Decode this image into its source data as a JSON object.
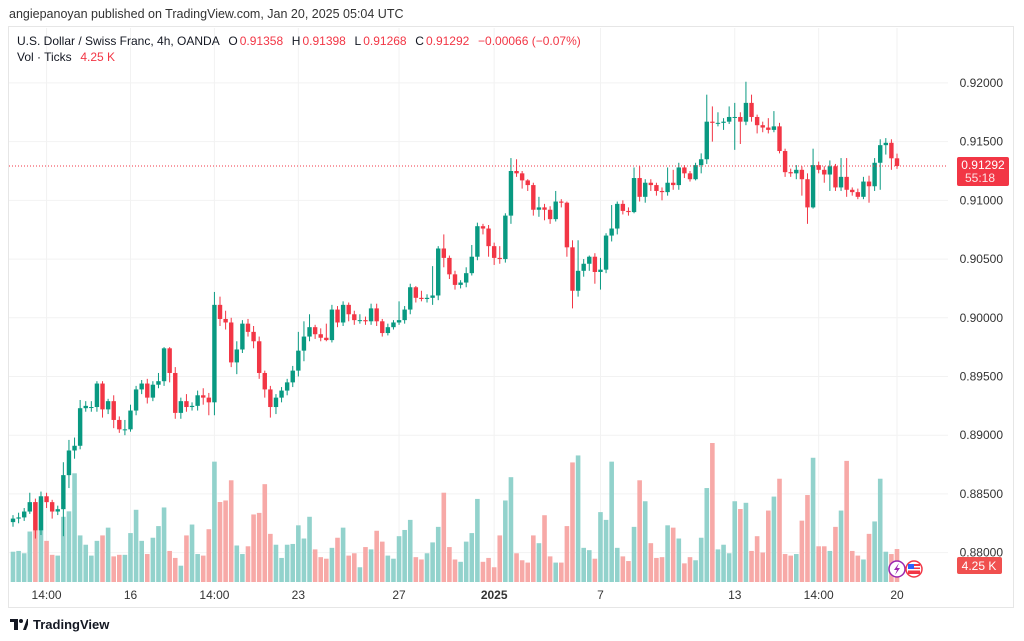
{
  "published": "angiepanoyan published on TradingView.com, Jan 20, 2025 05:04 UTC",
  "legend": {
    "symbol": "U.S. Dollar / Swiss Franc, 4h, OANDA",
    "o_label": "O",
    "o": "0.91358",
    "h_label": "H",
    "h": "0.91398",
    "l_label": "L",
    "l": "0.91268",
    "c_label": "C",
    "c": "0.91292",
    "change": "−0.00066 (−0.07%)",
    "vol_label": "Vol · Ticks",
    "vol": "4.25 K"
  },
  "price_badge": {
    "price": "0.91292",
    "countdown": "55:18"
  },
  "volume_badge": "4.25 K",
  "footer_logo": "TradingView",
  "colors": {
    "up": "#089981",
    "down": "#f23645",
    "vol_up": "#92d2cc",
    "vol_down": "#f7a9a7"
  },
  "chart_data": {
    "type": "candlestick",
    "title": "U.S. Dollar / Swiss Franc, 4h, OANDA",
    "ylim": [
      0.8775,
      0.9211
    ],
    "y_ticks": [
      "0.92000",
      "0.91500",
      "0.91000",
      "0.90500",
      "0.90000",
      "0.89500",
      "0.89000",
      "0.88500",
      "0.88000"
    ],
    "x_ticks": [
      {
        "label": "14:00",
        "index": 6
      },
      {
        "label": "16",
        "index": 21
      },
      {
        "label": "14:00",
        "index": 36
      },
      {
        "label": "23",
        "index": 51
      },
      {
        "label": "27",
        "index": 69
      },
      {
        "label": "2025",
        "index": 86
      },
      {
        "label": "7",
        "index": 105
      },
      {
        "label": "13",
        "index": 129
      },
      {
        "label": "14:00",
        "index": 144
      },
      {
        "label": "20",
        "index": 158
      }
    ],
    "last_price": 0.91292,
    "candles_ohlc": [
      [
        0.8826,
        0.8832,
        0.8822,
        0.8829
      ],
      [
        0.8829,
        0.8834,
        0.8825,
        0.883
      ],
      [
        0.883,
        0.8838,
        0.8827,
        0.8835
      ],
      [
        0.8835,
        0.8851,
        0.8833,
        0.8843
      ],
      [
        0.8843,
        0.8846,
        0.8812,
        0.8819
      ],
      [
        0.8819,
        0.8852,
        0.8815,
        0.8848
      ],
      [
        0.8848,
        0.8851,
        0.8838,
        0.8843
      ],
      [
        0.8843,
        0.8845,
        0.8829,
        0.8835
      ],
      [
        0.8835,
        0.884,
        0.8832,
        0.8837
      ],
      [
        0.8837,
        0.8877,
        0.8814,
        0.8866
      ],
      [
        0.8866,
        0.8896,
        0.8855,
        0.8887
      ],
      [
        0.8887,
        0.8898,
        0.888,
        0.8891
      ],
      [
        0.8891,
        0.893,
        0.8888,
        0.8923
      ],
      [
        0.8923,
        0.8929,
        0.892,
        0.8925
      ],
      [
        0.8924,
        0.8929,
        0.892,
        0.8924
      ],
      [
        0.8924,
        0.8946,
        0.892,
        0.8944
      ],
      [
        0.8944,
        0.8946,
        0.8915,
        0.8922
      ],
      [
        0.8922,
        0.8931,
        0.8918,
        0.8929
      ],
      [
        0.8929,
        0.8934,
        0.8906,
        0.8913
      ],
      [
        0.8913,
        0.8916,
        0.8902,
        0.8905
      ],
      [
        0.8905,
        0.8913,
        0.89,
        0.8905
      ],
      [
        0.8905,
        0.8926,
        0.8903,
        0.8921
      ],
      [
        0.8921,
        0.8942,
        0.8917,
        0.8939
      ],
      [
        0.8939,
        0.8947,
        0.8935,
        0.8944
      ],
      [
        0.8944,
        0.8948,
        0.8927,
        0.8932
      ],
      [
        0.8932,
        0.8946,
        0.8929,
        0.8943
      ],
      [
        0.8943,
        0.8953,
        0.894,
        0.8946
      ],
      [
        0.8946,
        0.8975,
        0.8942,
        0.8974
      ],
      [
        0.8974,
        0.8975,
        0.8945,
        0.8953
      ],
      [
        0.8953,
        0.8958,
        0.8914,
        0.8919
      ],
      [
        0.8919,
        0.8932,
        0.8914,
        0.8929
      ],
      [
        0.8929,
        0.8935,
        0.892,
        0.8924
      ],
      [
        0.8924,
        0.8928,
        0.8921,
        0.8925
      ],
      [
        0.8925,
        0.8938,
        0.8921,
        0.8934
      ],
      [
        0.8934,
        0.894,
        0.8926,
        0.8932
      ],
      [
        0.8932,
        0.8936,
        0.8917,
        0.8928
      ],
      [
        0.8928,
        0.9022,
        0.8917,
        0.9011
      ],
      [
        0.9011,
        0.9018,
        0.8993,
        0.8999
      ],
      [
        0.8999,
        0.9006,
        0.899,
        0.8996
      ],
      [
        0.8996,
        0.9,
        0.8958,
        0.8962
      ],
      [
        0.8962,
        0.898,
        0.8952,
        0.8973
      ],
      [
        0.8973,
        0.8998,
        0.897,
        0.8995
      ],
      [
        0.8995,
        0.8999,
        0.8984,
        0.8988
      ],
      [
        0.8988,
        0.8993,
        0.8974,
        0.898
      ],
      [
        0.898,
        0.8984,
        0.8948,
        0.8953
      ],
      [
        0.8953,
        0.8955,
        0.8932,
        0.8939
      ],
      [
        0.8939,
        0.8942,
        0.8915,
        0.8924
      ],
      [
        0.8924,
        0.8935,
        0.8918,
        0.8932
      ],
      [
        0.8932,
        0.8941,
        0.8928,
        0.8938
      ],
      [
        0.8938,
        0.8948,
        0.8934,
        0.8945
      ],
      [
        0.8945,
        0.8959,
        0.8941,
        0.8955
      ],
      [
        0.8955,
        0.8988,
        0.895,
        0.8972
      ],
      [
        0.8972,
        0.8997,
        0.8963,
        0.8984
      ],
      [
        0.8984,
        0.9003,
        0.898,
        0.8992
      ],
      [
        0.8992,
        0.8994,
        0.8982,
        0.8986
      ],
      [
        0.8986,
        0.8991,
        0.898,
        0.8983
      ],
      [
        0.8983,
        0.8995,
        0.898,
        0.8981
      ],
      [
        0.8981,
        0.9011,
        0.8979,
        0.9007
      ],
      [
        0.9007,
        0.901,
        0.8992,
        0.8996
      ],
      [
        0.8996,
        0.9014,
        0.8993,
        0.9011
      ],
      [
        0.9011,
        0.9013,
        0.8997,
        0.9003
      ],
      [
        0.9003,
        0.9006,
        0.8994,
        0.8998
      ],
      [
        0.8998,
        0.9003,
        0.8995,
        0.8998
      ],
      [
        0.8998,
        0.9001,
        0.8994,
        0.8997
      ],
      [
        0.8997,
        0.9012,
        0.8994,
        0.9008
      ],
      [
        0.9008,
        0.9012,
        0.8993,
        0.8997
      ],
      [
        0.8997,
        0.8999,
        0.8984,
        0.8987
      ],
      [
        0.8987,
        0.8995,
        0.8985,
        0.8992
      ],
      [
        0.8992,
        0.8998,
        0.899,
        0.8996
      ],
      [
        0.8996,
        0.9014,
        0.8994,
        0.8998
      ],
      [
        0.8998,
        0.901,
        0.8995,
        0.9007
      ],
      [
        0.9007,
        0.9029,
        0.9003,
        0.9026
      ],
      [
        0.9026,
        0.9027,
        0.9013,
        0.9017
      ],
      [
        0.9017,
        0.9023,
        0.9014,
        0.9016
      ],
      [
        0.9016,
        0.902,
        0.9013,
        0.9017
      ],
      [
        0.9017,
        0.9044,
        0.9011,
        0.9019
      ],
      [
        0.9019,
        0.9061,
        0.9015,
        0.9059
      ],
      [
        0.9059,
        0.9071,
        0.9043,
        0.9051
      ],
      [
        0.9051,
        0.9053,
        0.9033,
        0.9037
      ],
      [
        0.9037,
        0.904,
        0.9024,
        0.9028
      ],
      [
        0.9028,
        0.9032,
        0.9025,
        0.903
      ],
      [
        0.903,
        0.9043,
        0.9026,
        0.9038
      ],
      [
        0.9038,
        0.9062,
        0.9036,
        0.9052
      ],
      [
        0.9052,
        0.9081,
        0.9049,
        0.9078
      ],
      [
        0.9078,
        0.908,
        0.9071,
        0.9076
      ],
      [
        0.9076,
        0.9079,
        0.9052,
        0.9061
      ],
      [
        0.9061,
        0.9064,
        0.9045,
        0.9051
      ],
      [
        0.9051,
        0.9061,
        0.9046,
        0.905
      ],
      [
        0.905,
        0.9089,
        0.9047,
        0.9087
      ],
      [
        0.9087,
        0.9136,
        0.908,
        0.9125
      ],
      [
        0.9125,
        0.9135,
        0.912,
        0.9123
      ],
      [
        0.9123,
        0.9125,
        0.911,
        0.9117
      ],
      [
        0.9117,
        0.9118,
        0.9108,
        0.9113
      ],
      [
        0.9113,
        0.9115,
        0.9087,
        0.9092
      ],
      [
        0.9092,
        0.9103,
        0.9086,
        0.9094
      ],
      [
        0.9094,
        0.9097,
        0.9083,
        0.9092
      ],
      [
        0.9092,
        0.9095,
        0.908,
        0.9084
      ],
      [
        0.9084,
        0.9108,
        0.9082,
        0.9099
      ],
      [
        0.9099,
        0.9101,
        0.9094,
        0.9098
      ],
      [
        0.9098,
        0.9099,
        0.9052,
        0.906
      ],
      [
        0.906,
        0.9066,
        0.9008,
        0.9023
      ],
      [
        0.9023,
        0.9066,
        0.9018,
        0.904
      ],
      [
        0.904,
        0.905,
        0.9035,
        0.9046
      ],
      [
        0.9046,
        0.9053,
        0.904,
        0.9052
      ],
      [
        0.9052,
        0.9055,
        0.9029,
        0.9039
      ],
      [
        0.9039,
        0.9051,
        0.9024,
        0.9041
      ],
      [
        0.9041,
        0.9072,
        0.9038,
        0.907
      ],
      [
        0.907,
        0.9096,
        0.9065,
        0.9076
      ],
      [
        0.9076,
        0.9099,
        0.9071,
        0.9097
      ],
      [
        0.9097,
        0.91,
        0.9088,
        0.9091
      ],
      [
        0.9091,
        0.9094,
        0.9087,
        0.909
      ],
      [
        0.909,
        0.9128,
        0.9089,
        0.9119
      ],
      [
        0.9119,
        0.9129,
        0.9099,
        0.9103
      ],
      [
        0.9103,
        0.9118,
        0.9098,
        0.9115
      ],
      [
        0.9115,
        0.9118,
        0.9108,
        0.9113
      ],
      [
        0.9113,
        0.9115,
        0.9104,
        0.9108
      ],
      [
        0.9108,
        0.9111,
        0.91,
        0.9107
      ],
      [
        0.9107,
        0.9128,
        0.9104,
        0.9115
      ],
      [
        0.9115,
        0.9126,
        0.9109,
        0.9113
      ],
      [
        0.9113,
        0.9132,
        0.9109,
        0.9128
      ],
      [
        0.9128,
        0.913,
        0.9119,
        0.9123
      ],
      [
        0.9123,
        0.9125,
        0.9116,
        0.9118
      ],
      [
        0.9118,
        0.9132,
        0.9117,
        0.913
      ],
      [
        0.913,
        0.914,
        0.9123,
        0.9135
      ],
      [
        0.9135,
        0.919,
        0.9131,
        0.9167
      ],
      [
        0.9167,
        0.918,
        0.915,
        0.9166
      ],
      [
        0.9166,
        0.9175,
        0.9163,
        0.9166
      ],
      [
        0.9166,
        0.917,
        0.916,
        0.9167
      ],
      [
        0.9167,
        0.918,
        0.9165,
        0.9171
      ],
      [
        0.9171,
        0.9183,
        0.9143,
        0.9171
      ],
      [
        0.9171,
        0.9175,
        0.9148,
        0.9167
      ],
      [
        0.9167,
        0.9201,
        0.9164,
        0.9183
      ],
      [
        0.9183,
        0.919,
        0.9167,
        0.9171
      ],
      [
        0.9171,
        0.9173,
        0.9157,
        0.9164
      ],
      [
        0.9164,
        0.9167,
        0.9158,
        0.9162
      ],
      [
        0.9162,
        0.917,
        0.9157,
        0.916
      ],
      [
        0.916,
        0.9176,
        0.9158,
        0.9163
      ],
      [
        0.9163,
        0.9166,
        0.914,
        0.9142
      ],
      [
        0.9142,
        0.9144,
        0.912,
        0.9124
      ],
      [
        0.9124,
        0.9127,
        0.912,
        0.9123
      ],
      [
        0.9123,
        0.913,
        0.9118,
        0.9126
      ],
      [
        0.9126,
        0.9129,
        0.9104,
        0.9118
      ],
      [
        0.9118,
        0.9123,
        0.908,
        0.9094
      ],
      [
        0.9094,
        0.9144,
        0.9093,
        0.913
      ],
      [
        0.913,
        0.9133,
        0.9123,
        0.9126
      ],
      [
        0.9126,
        0.9129,
        0.9115,
        0.9122
      ],
      [
        0.9122,
        0.9134,
        0.9108,
        0.9129
      ],
      [
        0.9129,
        0.9131,
        0.9108,
        0.9111
      ],
      [
        0.9111,
        0.9136,
        0.9108,
        0.912
      ],
      [
        0.912,
        0.9136,
        0.9103,
        0.9109
      ],
      [
        0.9109,
        0.9111,
        0.9104,
        0.9107
      ],
      [
        0.9107,
        0.911,
        0.9101,
        0.9103
      ],
      [
        0.9103,
        0.912,
        0.9101,
        0.9116
      ],
      [
        0.9116,
        0.9121,
        0.9098,
        0.9112
      ],
      [
        0.9112,
        0.9136,
        0.9108,
        0.9132
      ],
      [
        0.9132,
        0.9152,
        0.9109,
        0.9147
      ],
      [
        0.9147,
        0.9153,
        0.9139,
        0.9149
      ],
      [
        0.9149,
        0.9152,
        0.9126,
        0.91358
      ],
      [
        0.91358,
        0.91398,
        0.91268,
        0.91292
      ]
    ],
    "volume_k": [
      3.9,
      4.0,
      3.7,
      6.5,
      10.3,
      10.6,
      5.3,
      3.5,
      3.4,
      8.4,
      9.1,
      14.0,
      6.0,
      4.8,
      3.4,
      5.3,
      6.0,
      7.0,
      3.3,
      3.5,
      3.5,
      6.3,
      9.3,
      5.3,
      3.6,
      5.7,
      7.2,
      9.6,
      4.0,
      3.1,
      2.1,
      6.0,
      7.4,
      3.6,
      3.4,
      6.8,
      15.5,
      10.3,
      10.5,
      13.1,
      4.7,
      3.6,
      4.6,
      8.7,
      8.9,
      12.6,
      6.2,
      4.8,
      3.1,
      4.8,
      4.9,
      7.3,
      5.6,
      8.4,
      4.2,
      3.2,
      3.0,
      4.4,
      5.7,
      7.0,
      3.4,
      3.7,
      1.9,
      4.5,
      4.2,
      6.6,
      5.2,
      3.4,
      3.0,
      5.9,
      6.7,
      8.0,
      3.2,
      2.9,
      3.7,
      5.1,
      7.1,
      11.5,
      4.5,
      2.9,
      2.6,
      5.2,
      6.3,
      10.7,
      2.6,
      3.1,
      1.9,
      6.0,
      10.5,
      13.5,
      3.7,
      2.8,
      2.5,
      6.0,
      5.0,
      8.6,
      3.3,
      2.5,
      2.5,
      7.2,
      15.4,
      16.3,
      4.4,
      4.1,
      3.0,
      9.0,
      8.0,
      15.5,
      4.4,
      3.3,
      2.7,
      7.1,
      13.1,
      10.4,
      5.0,
      3.1,
      3.2,
      7.3,
      7.0,
      5.6,
      2.4,
      3.2,
      2.8,
      5.7,
      12.1,
      17.9,
      4.2,
      4.8,
      3.7,
      10.4,
      9.4,
      10.2,
      4.0,
      5.9,
      3.8,
      9.2,
      11.0,
      13.3,
      3.6,
      3.4,
      3.6,
      7.9,
      11.2,
      16.0,
      4.6,
      4.6,
      4.0,
      7.1,
      9.2,
      15.6,
      4.0,
      3.4,
      2.9,
      6.2,
      7.8,
      13.3,
      3.9,
      3.6,
      4.25
    ]
  }
}
